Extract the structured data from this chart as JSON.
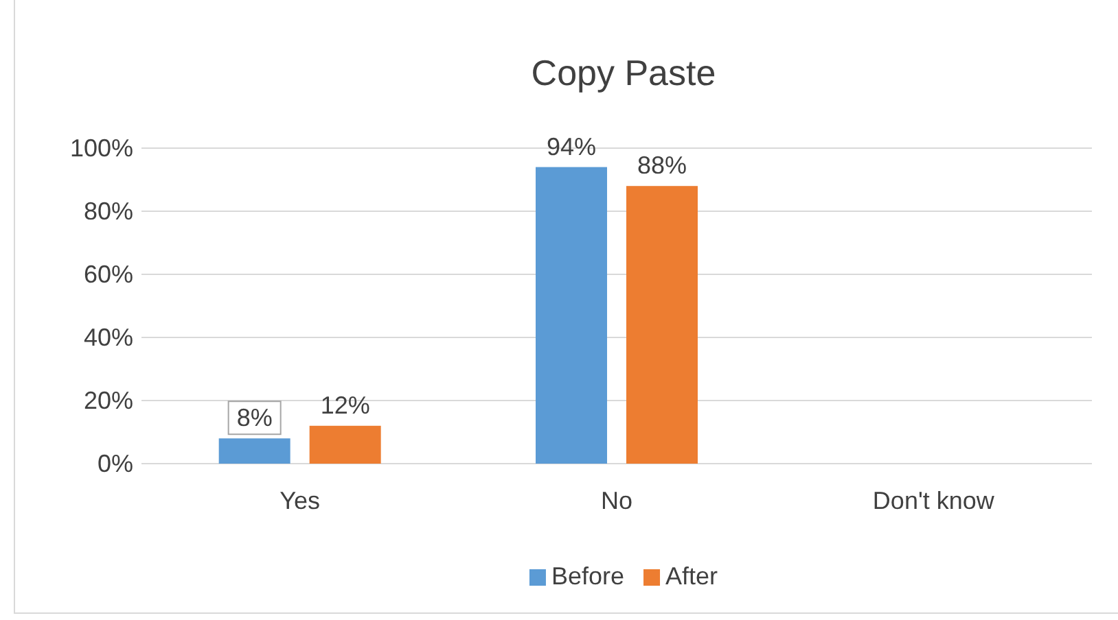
{
  "chart_data": {
    "type": "bar",
    "title": "Copy Paste",
    "categories": [
      "Yes",
      "No",
      "Don't know"
    ],
    "series": [
      {
        "name": "Before",
        "color": "#5b9bd5",
        "values": [
          8,
          94,
          null
        ],
        "value_labels": [
          "8%",
          "94%",
          null
        ]
      },
      {
        "name": "After",
        "color": "#ed7d31",
        "values": [
          12,
          88,
          null
        ],
        "value_labels": [
          "12%",
          "88%",
          null
        ]
      }
    ],
    "ylim": [
      0,
      100
    ],
    "yticks": [
      {
        "value": 0,
        "label": "0%"
      },
      {
        "value": 20,
        "label": "20%"
      },
      {
        "value": 40,
        "label": "40%"
      },
      {
        "value": 60,
        "label": "60%"
      },
      {
        "value": 80,
        "label": "80%"
      },
      {
        "value": 100,
        "label": "100%"
      }
    ],
    "grid": "y",
    "legend": "bottom"
  }
}
